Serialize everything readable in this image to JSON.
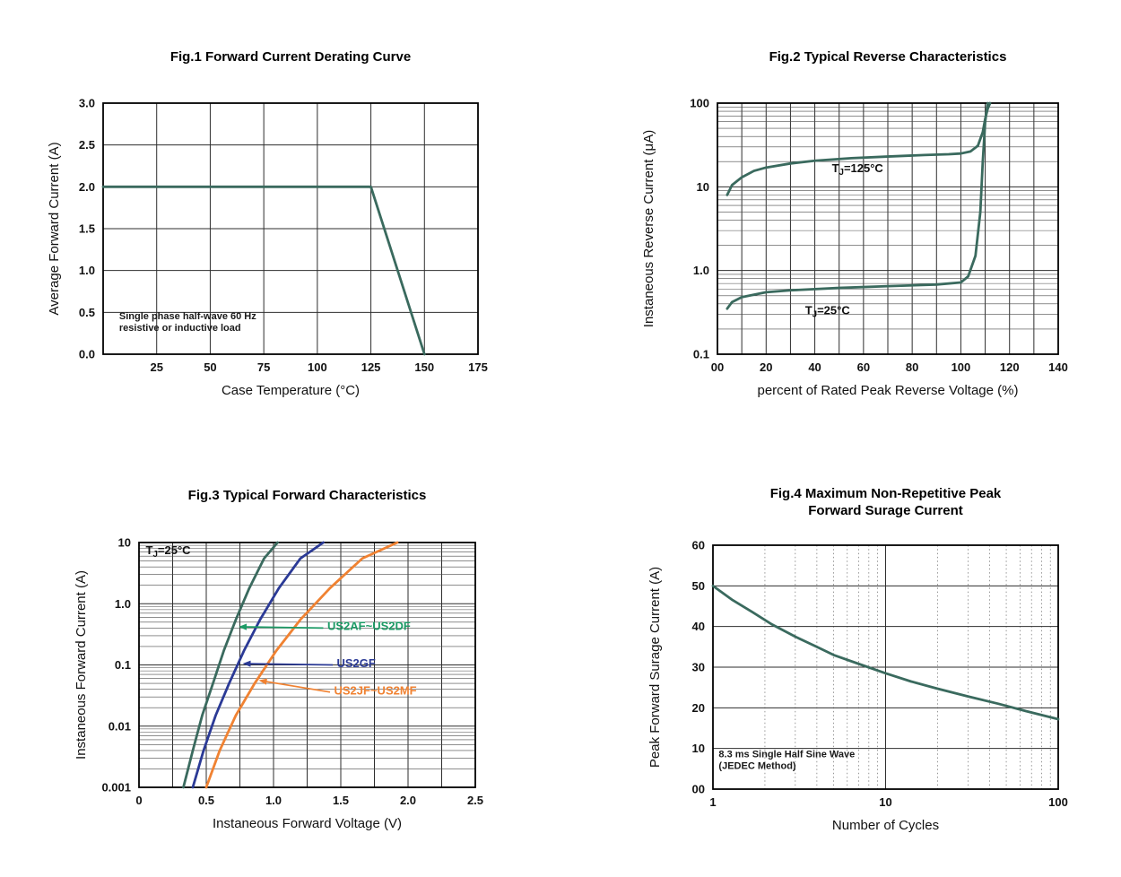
{
  "page": {
    "background": "#ffffff"
  },
  "chart_data": [
    {
      "type": "line",
      "title": "Fig.1 Forward Current Derating Curve",
      "xlabel": "Case Temperature (°C)",
      "ylabel": "Average Forward Current (A)",
      "xscale": "linear",
      "yscale": "linear",
      "xlim": [
        0,
        175
      ],
      "ylim": [
        0,
        3
      ],
      "xgrid_step": 25,
      "ygrid_step": 0.5,
      "xticks": [
        25,
        50,
        75,
        100,
        125,
        150,
        175
      ],
      "xtick_labels": [
        "25",
        "50",
        "75",
        "100",
        "125",
        "150",
        "175"
      ],
      "yticks": [
        0,
        0.5,
        1,
        1.5,
        2,
        2.5,
        3
      ],
      "ytick_labels": [
        "0.0",
        "0.5",
        "1.0",
        "1.5",
        "2.0",
        "2.5",
        "3.0"
      ],
      "series": [
        {
          "name": "derating-curve",
          "color": "#3a6a5e",
          "x": [
            0,
            125,
            150
          ],
          "y": [
            2,
            2,
            0
          ]
        }
      ],
      "annotations": [
        {
          "x": 7.5,
          "y": 0.42,
          "lines": [
            "Single phase half-wave 60 Hz",
            "resistive or inductive load"
          ],
          "color": "#1a1a1a",
          "bold": true,
          "size": 11,
          "anchor": "start"
        }
      ]
    },
    {
      "type": "line",
      "title": "Fig.2 Typical Reverse Characteristics",
      "xlabel": "percent of Rated Peak Reverse Voltage (%)",
      "ylabel": "Instaneous Reverse Current (μA)",
      "xscale": "linear",
      "yscale": "log",
      "xlim": [
        0,
        140
      ],
      "ylim": [
        0.1,
        100
      ],
      "xgrid_step": 10,
      "xticks": [
        0,
        20,
        40,
        60,
        80,
        100,
        120,
        140
      ],
      "xtick_labels": [
        "00",
        "20",
        "40",
        "60",
        "80",
        "100",
        "120",
        "140"
      ],
      "yticks": [
        0.1,
        1,
        10,
        100
      ],
      "ytick_labels": [
        "0.1",
        "1.0",
        "10",
        "100"
      ],
      "series": [
        {
          "name": "tj-125c-curve",
          "color": "#3a6a5e",
          "x": [
            4,
            6,
            10,
            15,
            20,
            30,
            40,
            55,
            70,
            85,
            95,
            100,
            104,
            107,
            109,
            110,
            111,
            112
          ],
          "y": [
            8,
            10.5,
            13,
            15.5,
            17,
            19,
            20.5,
            22,
            23,
            24,
            24.5,
            25,
            26.5,
            31,
            45,
            65,
            85,
            100
          ]
        },
        {
          "name": "tj-25c-curve",
          "color": "#3a6a5e",
          "x": [
            4,
            6,
            10,
            20,
            30,
            50,
            70,
            90,
            100,
            103,
            106,
            108,
            109,
            110,
            111
          ],
          "y": [
            0.35,
            0.42,
            0.48,
            0.55,
            0.58,
            0.62,
            0.65,
            0.68,
            0.72,
            0.85,
            1.5,
            5,
            20,
            60,
            100
          ]
        }
      ],
      "annotations": [
        {
          "x": 47,
          "y": 15,
          "parts": [
            {
              "t": "T"
            },
            {
              "t": "J",
              "sub": true
            },
            {
              "t": "=125°C"
            }
          ],
          "color": "#111111",
          "bold": true,
          "size": 13,
          "anchor": "start"
        },
        {
          "x": 36,
          "y": 0.3,
          "parts": [
            {
              "t": "T"
            },
            {
              "t": "J",
              "sub": true
            },
            {
              "t": "=25°C"
            }
          ],
          "color": "#111111",
          "bold": true,
          "size": 13,
          "anchor": "start"
        }
      ]
    },
    {
      "type": "line",
      "title": "Fig.3 Typical Forward Characteristics",
      "xlabel": "Instaneous Forward Voltage (V)",
      "ylabel": "Instaneous Forward Current (A)",
      "xscale": "linear",
      "yscale": "log",
      "xlim": [
        0,
        2.5
      ],
      "ylim": [
        0.001,
        10
      ],
      "xgrid_step": 0.25,
      "xticks": [
        0,
        0.5,
        1,
        1.5,
        2,
        2.5
      ],
      "xtick_labels": [
        "0",
        "0.5",
        "1.0",
        "1.5",
        "2.0",
        "2.5"
      ],
      "yticks": [
        0.001,
        0.01,
        0.1,
        1,
        10
      ],
      "ytick_labels": [
        "0.001",
        "0.01",
        "0.1",
        "1.0",
        "10"
      ],
      "series": [
        {
          "name": "us2af-us2df-curve",
          "color": "#3a6a5e",
          "x": [
            0.33,
            0.4,
            0.47,
            0.55,
            0.63,
            0.72,
            0.82,
            0.93,
            1.03
          ],
          "y": [
            0.001,
            0.004,
            0.015,
            0.05,
            0.17,
            0.55,
            1.8,
            5.5,
            10
          ]
        },
        {
          "name": "us2gf-curve",
          "color": "#2b3a96",
          "x": [
            0.4,
            0.48,
            0.57,
            0.67,
            0.78,
            0.9,
            1.04,
            1.2,
            1.37
          ],
          "y": [
            0.001,
            0.004,
            0.015,
            0.05,
            0.17,
            0.55,
            1.8,
            5.5,
            10
          ]
        },
        {
          "name": "us2jf-us2mf-curve",
          "color": "#f08232",
          "x": [
            0.5,
            0.6,
            0.72,
            0.86,
            1.02,
            1.2,
            1.42,
            1.66,
            1.92
          ],
          "y": [
            0.001,
            0.004,
            0.015,
            0.05,
            0.17,
            0.55,
            1.8,
            5.5,
            10
          ]
        }
      ],
      "annotations": [
        {
          "x": 0.05,
          "y": 6.5,
          "parts": [
            {
              "t": "T"
            },
            {
              "t": "J",
              "sub": true
            },
            {
              "t": "=25°C"
            }
          ],
          "color": "#111111",
          "bold": true,
          "size": 13,
          "anchor": "start"
        },
        {
          "x": 1.4,
          "y": 0.37,
          "text": "US2AF~US2DF",
          "color": "#1d9b66",
          "bold": true,
          "size": 13,
          "anchor": "start"
        },
        {
          "x": 1.47,
          "y": 0.092,
          "text": "US2GF",
          "color": "#2b3a96",
          "bold": true,
          "size": 13,
          "anchor": "start"
        },
        {
          "x": 1.45,
          "y": 0.033,
          "text": "US2JF~US2MF",
          "color": "#f08232",
          "bold": true,
          "size": 13,
          "anchor": "start"
        }
      ],
      "arrows": [
        {
          "x1": 1.37,
          "y1": 0.4,
          "x2": 0.74,
          "y2": 0.42,
          "color": "#1d9b66"
        },
        {
          "x1": 1.44,
          "y1": 0.1,
          "x2": 0.77,
          "y2": 0.105,
          "color": "#2b3a96"
        },
        {
          "x1": 1.42,
          "y1": 0.036,
          "x2": 0.89,
          "y2": 0.056,
          "color": "#f08232"
        }
      ]
    },
    {
      "type": "line",
      "title": "Fig.4 Maximum Non-Repetitive Peak\nForward Surage Current",
      "xlabel": "Number of Cycles",
      "ylabel": "Peak Forward Surage Current (A)",
      "xscale": "log",
      "yscale": "linear",
      "xlim": [
        1,
        100
      ],
      "ylim": [
        0,
        60
      ],
      "ygrid_step": 10,
      "xticks": [
        1,
        10,
        100
      ],
      "xtick_labels": [
        "1",
        "10",
        "100"
      ],
      "yticks": [
        0,
        10,
        20,
        30,
        40,
        50,
        60
      ],
      "ytick_labels": [
        "00",
        "10",
        "20",
        "30",
        "40",
        "50",
        "60"
      ],
      "series": [
        {
          "name": "surge-current-curve",
          "color": "#3a6a5e",
          "x": [
            1,
            1.3,
            1.7,
            2.2,
            3,
            4,
            5,
            7,
            10,
            14,
            20,
            30,
            45,
            65,
            100
          ],
          "y": [
            50,
            46.5,
            43.5,
            40.5,
            37.5,
            35,
            33,
            30.8,
            28.5,
            26.5,
            24.7,
            22.8,
            21,
            19.2,
            17.2
          ]
        }
      ],
      "annotations": [
        {
          "x": 1.08,
          "y": 7.8,
          "lines": [
            "8.3 ms Single Half Sine Wave",
            "(JEDEC Method)"
          ],
          "color": "#1a1a1a",
          "bold": true,
          "size": 11,
          "anchor": "start"
        }
      ]
    }
  ]
}
